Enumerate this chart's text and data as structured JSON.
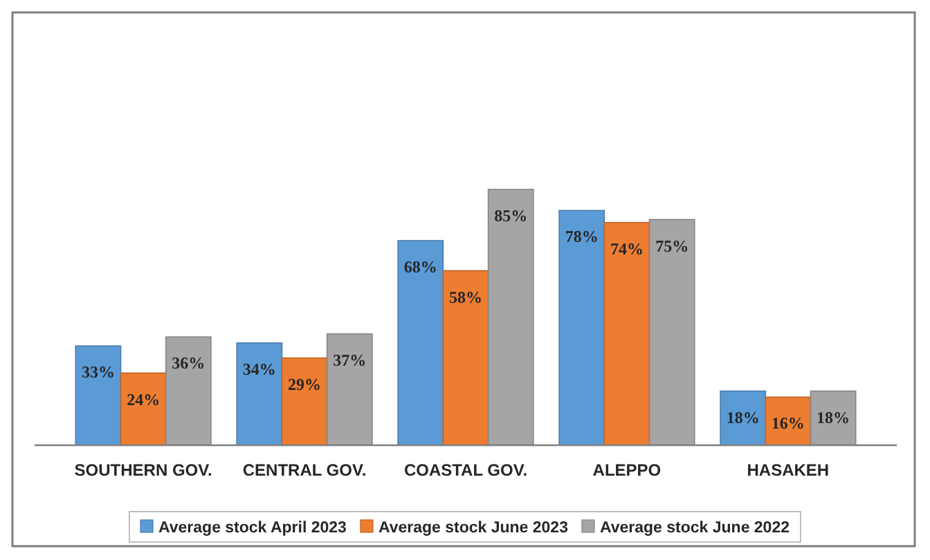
{
  "chart_data": {
    "type": "bar",
    "categories": [
      "SOUTHERN GOV.",
      "CENTRAL GOV.",
      "COASTAL GOV.",
      "ALEPPO",
      "HASAKEH"
    ],
    "series": [
      {
        "name": "Average stock April 2023",
        "color": "#5b9bd5",
        "values": [
          33,
          34,
          68,
          78,
          18
        ],
        "value_labels": [
          "33%",
          "34%",
          "68%",
          "78%",
          "18%"
        ]
      },
      {
        "name": "Average stock June 2023",
        "color": "#ed7d31",
        "values": [
          24,
          29,
          58,
          74,
          16
        ],
        "value_labels": [
          "24%",
          "29%",
          "58%",
          "74%",
          "16%"
        ]
      },
      {
        "name": "Average stock June 2022",
        "color": "#a5a5a5",
        "values": [
          36,
          37,
          85,
          75,
          18
        ],
        "value_labels": [
          "36%",
          "37%",
          "85%",
          "75%",
          "18%"
        ]
      }
    ],
    "legend": "bottom",
    "grid": false
  }
}
